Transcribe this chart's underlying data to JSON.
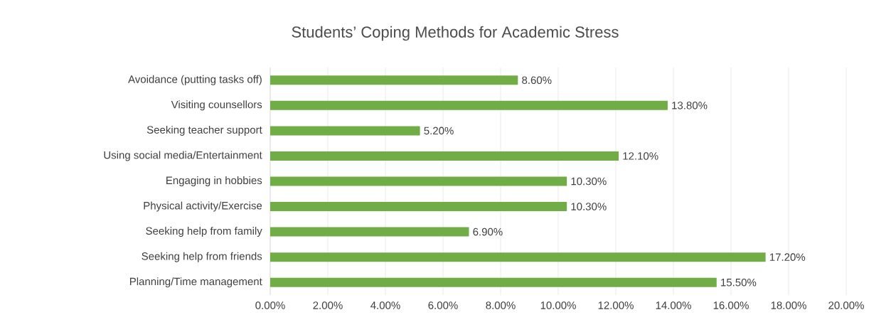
{
  "chart_data": {
    "type": "bar",
    "orientation": "horizontal",
    "title": "Students’ Coping Methods for Academic Stress",
    "categories": [
      "Avoidance (putting tasks off)",
      "Visiting counsellors",
      "Seeking teacher support",
      "Using social media/Entertainment",
      "Engaging in hobbies",
      "Physical activity/Exercise",
      "Seeking help from family",
      "Seeking help from friends",
      "Planning/Time management"
    ],
    "values": [
      8.6,
      13.8,
      5.2,
      12.1,
      10.3,
      10.3,
      6.9,
      17.2,
      15.5
    ],
    "value_labels": [
      "8.60%",
      "13.80%",
      "5.20%",
      "12.10%",
      "10.30%",
      "10.30%",
      "6.90%",
      "17.20%",
      "15.50%"
    ],
    "color": "#70ad47",
    "xlim": [
      0,
      20
    ],
    "xticks": [
      {
        "value": 0,
        "label": "0.00%"
      },
      {
        "value": 2,
        "label": "2.00%"
      },
      {
        "value": 4,
        "label": "4.00%"
      },
      {
        "value": 6,
        "label": "6.00%"
      },
      {
        "value": 8,
        "label": "8.00%"
      },
      {
        "value": 10,
        "label": "10.00%"
      },
      {
        "value": 12,
        "label": "12.00%"
      },
      {
        "value": 14,
        "label": "14.00%"
      },
      {
        "value": 16,
        "label": "16.00%"
      },
      {
        "value": 18,
        "label": "18.00%"
      },
      {
        "value": 20,
        "label": "20.00%"
      }
    ],
    "grid": "x"
  }
}
